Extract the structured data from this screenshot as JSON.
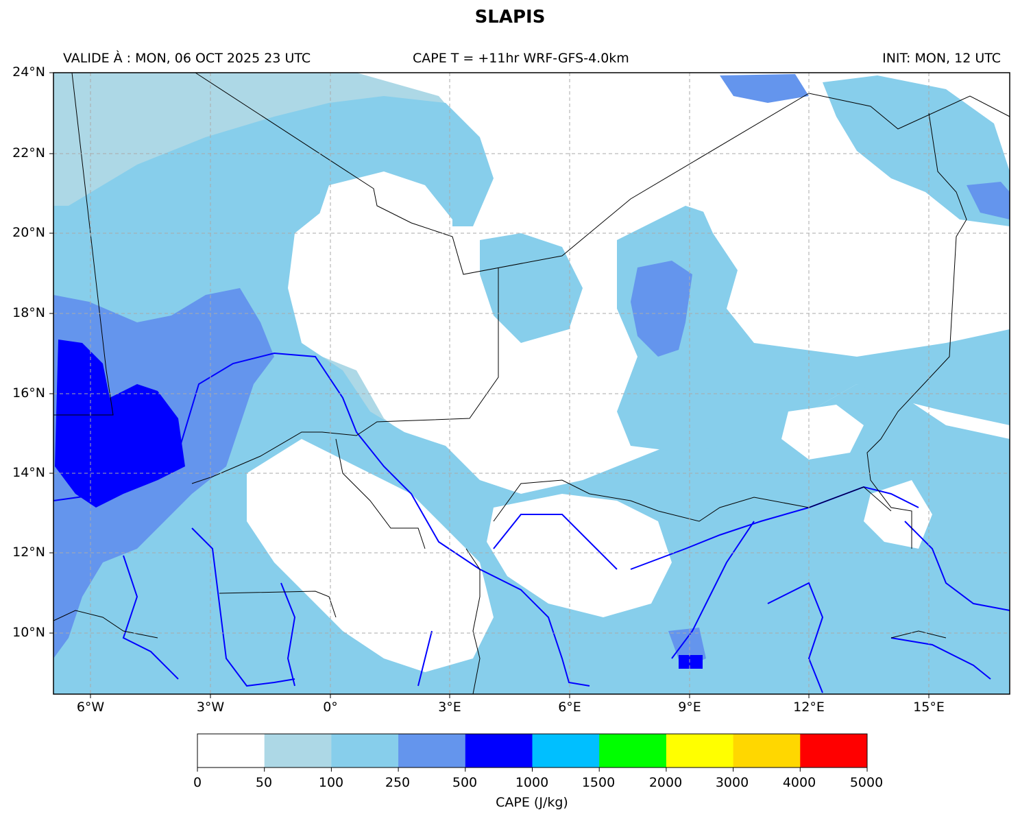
{
  "header": {
    "title": "SLAPIS",
    "valid": "VALIDE À : MON, 06 OCT 2025 23 UTC",
    "field": "CAPE T = +11hr WRF-GFS-4.0km",
    "init": "INIT: MON, 12 UTC"
  },
  "map": {
    "lat_labels": [
      "24°N",
      "22°N",
      "20°N",
      "18°N",
      "16°N",
      "14°N",
      "12°N",
      "10°N"
    ],
    "lon_labels": [
      "6°W",
      "3°W",
      "0°",
      "3°E",
      "6°E",
      "9°E",
      "12°E",
      "15°E"
    ],
    "extent": {
      "lon": [
        -6.9,
        17.0
      ],
      "lat": [
        8.5,
        24.0
      ]
    }
  },
  "colorbar": {
    "title": "CAPE (J/kg)",
    "ticks": [
      "0",
      "50",
      "100",
      "250",
      "500",
      "1000",
      "1500",
      "2000",
      "3000",
      "4000",
      "5000"
    ],
    "colors": [
      "#ffffff",
      "#add8e6",
      "#87ceeb",
      "#6495ed",
      "#0000ff",
      "#00bfff",
      "#00ff00",
      "#ffff00",
      "#ffd700",
      "#ff0000"
    ]
  }
}
